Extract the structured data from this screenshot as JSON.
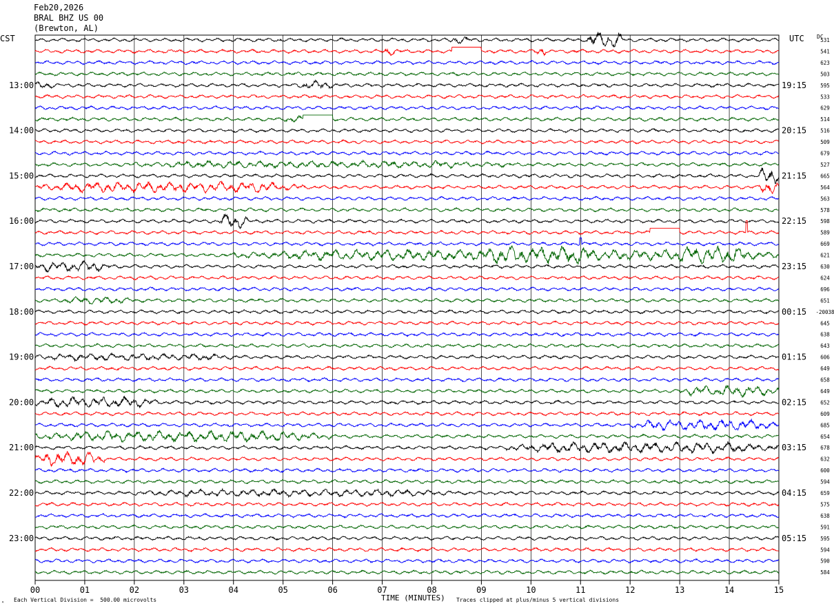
{
  "header": {
    "date": "Feb20,2026",
    "station": "BRAL BHZ US 00",
    "location": "(Brewton, AL)"
  },
  "axis": {
    "left_tz": "CST",
    "right_tz": "UTC",
    "dc_label": "DC"
  },
  "footer": {
    "scale_text": "Each Vertical Division =  500.00 microvolts",
    "xlabel": "TIME (MINUTES)",
    "clip_text": "Traces clipped at plus/minus 5 vertical divisions",
    "corner_mark": "ᴬ"
  },
  "chart_data": {
    "type": "line",
    "title": "BRAL BHZ US 00",
    "xlabel": "TIME (MINUTES)",
    "x_ticks": [
      "00",
      "01",
      "02",
      "03",
      "04",
      "05",
      "06",
      "07",
      "08",
      "09",
      "10",
      "11",
      "12",
      "13",
      "14",
      "15"
    ],
    "xlim": [
      0,
      15
    ],
    "rows_per_hour": 4,
    "trace_colors": [
      "#000000",
      "#ff0000",
      "#0000ff",
      "#006400"
    ],
    "left_hour_labels": [
      "13:00",
      "14:00",
      "15:00",
      "16:00",
      "17:00",
      "18:00",
      "19:00",
      "20:00",
      "21:00",
      "22:00",
      "23:00"
    ],
    "right_hour_labels": [
      "19:15",
      "20:15",
      "21:15",
      "22:15",
      "23:15",
      "00:15",
      "01:15",
      "02:15",
      "03:15",
      "04:15",
      "05:15"
    ],
    "dc_offsets": [
      "531",
      "541",
      "623",
      "503",
      "595",
      "533",
      "629",
      "514",
      "516",
      "509",
      "679",
      "527",
      "665",
      "564",
      "563",
      "578",
      "598",
      "589",
      "669",
      "621",
      "630",
      "624",
      "696",
      "651",
      "-20038",
      "645",
      "638",
      "643",
      "606",
      "649",
      "658",
      "649",
      "652",
      "609",
      "685",
      "654",
      "678",
      "632",
      "600",
      "594",
      "659",
      "575",
      "638",
      "591",
      "595",
      "594",
      "590",
      "584"
    ],
    "events": [
      {
        "row": 0,
        "start_min": 11.1,
        "end_min": 11.9,
        "amp": 4.5
      },
      {
        "row": 0,
        "start_min": 8.3,
        "end_min": 8.8,
        "amp": 2.0
      },
      {
        "row": 1,
        "start_min": 10.1,
        "end_min": 10.3,
        "amp": 3.0
      },
      {
        "row": 1,
        "start_min": 7.0,
        "end_min": 7.3,
        "amp": 2.5
      },
      {
        "row": 4,
        "start_min": 5.3,
        "end_min": 6.0,
        "amp": 2.5
      },
      {
        "row": 4,
        "start_min": 0.0,
        "end_min": 0.4,
        "amp": 2.0
      },
      {
        "row": 7,
        "start_min": 5.0,
        "end_min": 5.4,
        "amp": 2.0
      },
      {
        "row": 11,
        "start_min": 2.0,
        "end_min": 9.5,
        "amp": 2.0
      },
      {
        "row": 12,
        "start_min": 14.6,
        "end_min": 15.0,
        "amp": 5.0
      },
      {
        "row": 13,
        "start_min": 0.0,
        "end_min": 5.5,
        "amp": 3.0
      },
      {
        "row": 13,
        "start_min": 14.6,
        "end_min": 15.0,
        "amp": 4.0
      },
      {
        "row": 16,
        "start_min": 3.7,
        "end_min": 4.3,
        "amp": 4.0
      },
      {
        "row": 19,
        "start_min": 4.0,
        "end_min": 15.0,
        "amp": 3.0
      },
      {
        "row": 19,
        "start_min": 8.8,
        "end_min": 11.5,
        "amp": 5.0
      },
      {
        "row": 19,
        "start_min": 12.8,
        "end_min": 14.5,
        "amp": 5.0
      },
      {
        "row": 20,
        "start_min": 0.0,
        "end_min": 1.5,
        "amp": 3.0
      },
      {
        "row": 23,
        "start_min": 0.5,
        "end_min": 2.0,
        "amp": 2.0
      },
      {
        "row": 28,
        "start_min": 0.0,
        "end_min": 4.0,
        "amp": 2.0
      },
      {
        "row": 31,
        "start_min": 13.0,
        "end_min": 15.0,
        "amp": 3.0
      },
      {
        "row": 32,
        "start_min": 0.0,
        "end_min": 2.5,
        "amp": 3.0
      },
      {
        "row": 34,
        "start_min": 12.0,
        "end_min": 15.0,
        "amp": 3.0
      },
      {
        "row": 35,
        "start_min": 0.0,
        "end_min": 6.0,
        "amp": 3.0
      },
      {
        "row": 36,
        "start_min": 9.5,
        "end_min": 15.0,
        "amp": 3.0
      },
      {
        "row": 37,
        "start_min": 0.0,
        "end_min": 1.4,
        "amp": 4.0
      },
      {
        "row": 40,
        "start_min": 2.0,
        "end_min": 8.5,
        "amp": 2.0
      }
    ],
    "gaps": [
      {
        "row": 1,
        "start_min": 8.4,
        "end_min": 9.0
      },
      {
        "row": 7,
        "start_min": 5.4,
        "end_min": 6.0
      },
      {
        "row": 17,
        "start_min": 12.4,
        "end_min": 13.0
      }
    ],
    "spikes": [
      {
        "row": 17,
        "min": 14.35,
        "amp": 5.0
      },
      {
        "row": 18,
        "min": 11.0,
        "amp": 2.5
      }
    ]
  }
}
